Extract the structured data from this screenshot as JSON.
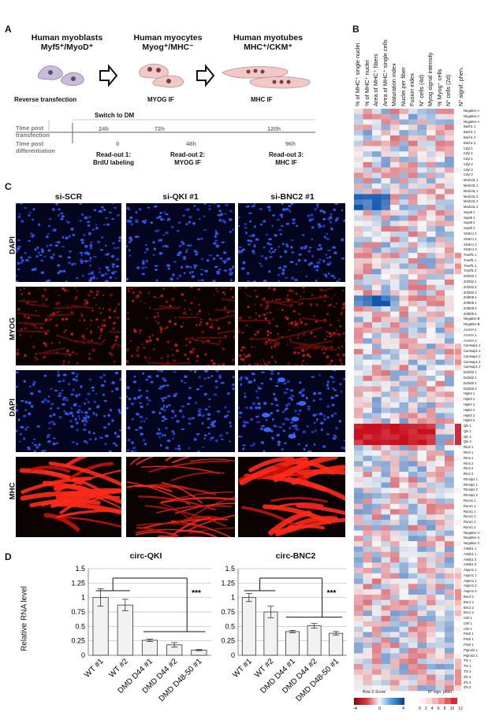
{
  "panel_a": {
    "label": "A",
    "stages": [
      {
        "title": "Human myoblasts",
        "subtitle": "Myf5⁺/MyoD⁺",
        "note": "Reverse transfection"
      },
      {
        "title": "Human myocytes",
        "subtitle": "Myog⁺/MHC⁻",
        "note": "MYOG IF"
      },
      {
        "title": "Human myotubes",
        "subtitle": "MHC⁺/CKM⁺",
        "note": "MHC IF"
      }
    ],
    "switch_label": "Switch to DM",
    "timeline_rows": [
      "Time post transfection",
      "Time post differentiation"
    ],
    "top_ticks": [
      "24h",
      "72h",
      "120h"
    ],
    "bottom_ticks": [
      "0",
      "48h",
      "96h"
    ],
    "readouts": [
      {
        "line1": "Read-out 1:",
        "line2": "BrdU labeling"
      },
      {
        "line1": "Read-out 2:",
        "line2": "MYOG IF"
      },
      {
        "line1": "Read-out 3:",
        "line2": "MHC IF"
      }
    ]
  },
  "panel_b": {
    "label": "B",
    "columns": [
      "% of MHC⁺ single nuclei",
      "% of MHC⁺ nuclei",
      "Area of MHC⁺ fibers",
      "Area of MHC⁺ single cells",
      "Maturation index",
      "Nuclei per fiber",
      "Fusion index",
      "N° cells (4d)",
      "Myog signal intensity",
      "% Myog⁺ cells",
      "N° cells (2d)",
      "N° signif. phen."
    ],
    "row_labels": [
      "Negative A",
      "Negative A",
      "Negative A",
      "Bach1 1",
      "Bach1 1",
      "Bach1 2",
      "Bach1 2",
      "Cdyl 1",
      "Cdyl 1",
      "Cdyl 1",
      "Cdyl 2",
      "Cdyl 2",
      "Cdyl 2",
      "Med13L 1",
      "Med13L 1",
      "Med13L 1",
      "Med13L 2",
      "Med13L 2",
      "Med13L 2",
      "Sept9 1",
      "Sept9 1",
      "Sept9 2",
      "Sept9 2",
      "Slc8A1 1",
      "Slc8A1 1",
      "Slc8A1 2",
      "Slc8A1 2",
      "Tmeff1 1",
      "Tmeff1 1",
      "Tmeff1 2",
      "Tmeff1 2",
      "Znf292 1",
      "Znf292 1",
      "Znf292 2",
      "Znf292 2",
      "Znf609 1",
      "Znf609 1",
      "Znf609 2",
      "Znf609 2",
      "Negative B",
      "Negative B",
      "Acvr2A 1",
      "Acvr2A 1",
      "Acvr2A 1",
      "Camsap1 1",
      "Camsap1 1",
      "Camsap1 2",
      "Camsap1 2",
      "Camsap1 2",
      "Dcbld2 1",
      "Dcbld2 1",
      "Dcbld2 2",
      "Dcbld2 2",
      "Hipk3 1",
      "Hipk3 1",
      "Hipk3 1",
      "Hipk3 2",
      "Hipk3 2",
      "Hipk3 2",
      "Qki 1",
      "Qki 1",
      "Qki 2",
      "Qki 2",
      "Rtn4 1",
      "Rtn4 1",
      "Rtn4 1",
      "Rtn4 2",
      "Rtn4 2",
      "Rtn4 2",
      "Rtn4ip1 1",
      "Rtn4ip1 1",
      "Rtn4ip1 2",
      "Rtn4ip1 2",
      "Runx1 1",
      "Runx1 1",
      "Runx1 1",
      "Runx1 2",
      "Runx1 2",
      "Runx1 2",
      "Negative C",
      "Negative C",
      "Negative C",
      "Ankib1 1",
      "Ankib1 1",
      "Ankib1 2",
      "Ankib1 2",
      "Aspm1 1",
      "Aspm1 1",
      "Aspm1 1",
      "Aspm1 2",
      "Aspm1 2",
      "Bnc2 1",
      "Bnc2 1",
      "Bnc2 2",
      "Bnc2 2",
      "Crkl 1",
      "Crkl 1",
      "Crkl 1",
      "Pmsl 1",
      "Pmsl 1",
      "Pmsl 1",
      "Ptpn4/2 1",
      "Ptpn4/2 1",
      "Ttn 1",
      "Ttn 1",
      "Ttn 2",
      "Zfx 3",
      "Zfx 3",
      "Zfx 3"
    ],
    "colorbar_label": "Row Z-Score",
    "colorbar_ticks": [
      "-4",
      "0",
      "4"
    ],
    "sign_label": "N° sign. phen.",
    "sign_ticks": [
      "0",
      "2",
      "4",
      "6",
      "8",
      "10",
      "12"
    ],
    "colors": {
      "low": "#c8102e",
      "mid": "#f4f4f4",
      "high": "#1460b5"
    }
  },
  "panel_c": {
    "label": "C",
    "conditions": [
      "si-SCR",
      "si-QKI #1",
      "si-BNC2 #1"
    ],
    "rows": [
      "DAPI",
      "MYOG",
      "DAPI",
      "MHC"
    ]
  },
  "panel_d": {
    "label": "D",
    "ylabel": "Relative RNA level",
    "significance": "***",
    "chart_data": [
      {
        "type": "bar",
        "title": "circ-QKI",
        "categories": [
          "WT #1",
          "WT #2",
          "DMD D44 #1",
          "DMD D44 #2",
          "DMD D48-50 #1"
        ],
        "values": [
          1.0,
          0.87,
          0.26,
          0.18,
          0.09
        ],
        "errors": [
          0.15,
          0.1,
          0.02,
          0.04,
          0.01
        ],
        "ylim": [
          0,
          1.5
        ],
        "yticks": [
          "0",
          "0.25",
          "0.5",
          "0.75",
          "1",
          "1.25",
          "1.5"
        ]
      },
      {
        "type": "bar",
        "title": "circ-BNC2",
        "categories": [
          "WT #1",
          "WT #2",
          "DMD D44 #1",
          "DMD D44 #2",
          "DMD D48-50 #1"
        ],
        "values": [
          1.0,
          0.75,
          0.41,
          0.51,
          0.38
        ],
        "errors": [
          0.07,
          0.1,
          0.02,
          0.04,
          0.03
        ],
        "ylim": [
          0,
          1.5
        ],
        "yticks": [
          "0",
          "0.25",
          "0.5",
          "0.75",
          "1",
          "1.25",
          "1.5"
        ]
      }
    ]
  }
}
